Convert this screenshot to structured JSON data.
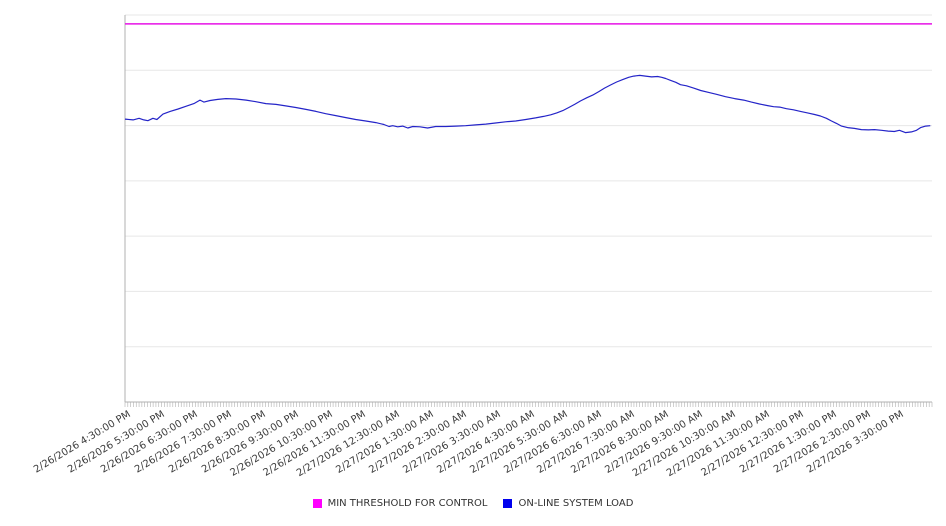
{
  "chart_data": {
    "type": "line",
    "title": "",
    "xlabel": "",
    "ylabel": "",
    "x_axis": {
      "x_unit": "hours_since_first_label",
      "hours_span": 24,
      "minor_ticks": 288,
      "categories": [
        "2/26/2026 4:30:00 PM",
        "2/26/2026 5:30:00 PM",
        "2/26/2026 6:30:00 PM",
        "2/26/2026 7:30:00 PM",
        "2/26/2026 8:30:00 PM",
        "2/26/2026 9:30:00 PM",
        "2/26/2026 10:30:00 PM",
        "2/26/2026 11:30:00 PM",
        "2/27/2026 12:30:00 AM",
        "2/27/2026 1:30:00 AM",
        "2/27/2026 2:30:00 AM",
        "2/27/2026 3:30:00 AM",
        "2/27/2026 4:30:00 AM",
        "2/27/2026 5:30:00 AM",
        "2/27/2026 6:30:00 AM",
        "2/27/2026 7:30:00 AM",
        "2/27/2026 8:30:00 AM",
        "2/27/2026 9:30:00 AM",
        "2/27/2026 10:30:00 AM",
        "2/27/2026 11:30:00 AM",
        "2/27/2026 12:30:00 PM",
        "2/27/2026 1:30:00 PM",
        "2/27/2026 2:30:00 PM",
        "2/27/2026 3:30:00 PM"
      ]
    },
    "y_axis": {
      "labels_visible": false,
      "ylim": [
        0,
        100
      ],
      "unit": "relative-load (no tick labels shown on screen)"
    },
    "grid": {
      "horizontal_divisions": 7,
      "vertical": false,
      "color": "#e7e7e7"
    },
    "axis_color": "#b0b0b0",
    "legend_position": "bottom-center",
    "legend": [
      {
        "label": "MIN THRESHOLD FOR CONTROL",
        "color": "#ff00ff"
      },
      {
        "label": "ON-LINE SYSTEM LOAD",
        "color": "#0000ee"
      }
    ],
    "series": [
      {
        "name": "MIN THRESHOLD FOR CONTROL",
        "kind": "threshold",
        "color": "#e613e6",
        "value": 97.7
      },
      {
        "name": "ON-LINE SYSTEM LOAD",
        "kind": "line",
        "color": "#2424c8",
        "points": [
          [
            0,
            73.1
          ],
          [
            0.24,
            72.9
          ],
          [
            0.42,
            73.3
          ],
          [
            0.56,
            72.9
          ],
          [
            0.68,
            72.7
          ],
          [
            0.83,
            73.3
          ],
          [
            0.95,
            73.0
          ],
          [
            1.13,
            74.4
          ],
          [
            1.34,
            75.1
          ],
          [
            1.58,
            75.7
          ],
          [
            1.81,
            76.4
          ],
          [
            2.05,
            77.1
          ],
          [
            2.23,
            78.0
          ],
          [
            2.35,
            77.5
          ],
          [
            2.53,
            77.9
          ],
          [
            2.76,
            78.2
          ],
          [
            3.0,
            78.4
          ],
          [
            3.3,
            78.3
          ],
          [
            3.6,
            78.0
          ],
          [
            3.89,
            77.6
          ],
          [
            4.19,
            77.1
          ],
          [
            4.49,
            76.9
          ],
          [
            4.78,
            76.5
          ],
          [
            5.08,
            76.1
          ],
          [
            5.38,
            75.6
          ],
          [
            5.68,
            75.1
          ],
          [
            5.97,
            74.5
          ],
          [
            6.27,
            74.0
          ],
          [
            6.57,
            73.5
          ],
          [
            6.86,
            73.0
          ],
          [
            7.16,
            72.6
          ],
          [
            7.46,
            72.2
          ],
          [
            7.7,
            71.7
          ],
          [
            7.85,
            71.2
          ],
          [
            7.96,
            71.4
          ],
          [
            8.11,
            71.1
          ],
          [
            8.26,
            71.3
          ],
          [
            8.41,
            70.8
          ],
          [
            8.56,
            71.2
          ],
          [
            8.77,
            71.1
          ],
          [
            9.0,
            70.8
          ],
          [
            9.24,
            71.2
          ],
          [
            9.54,
            71.2
          ],
          [
            9.84,
            71.3
          ],
          [
            10.13,
            71.4
          ],
          [
            10.43,
            71.6
          ],
          [
            10.73,
            71.8
          ],
          [
            11.02,
            72.1
          ],
          [
            11.32,
            72.4
          ],
          [
            11.62,
            72.6
          ],
          [
            11.92,
            73.0
          ],
          [
            12.21,
            73.4
          ],
          [
            12.45,
            73.8
          ],
          [
            12.66,
            74.2
          ],
          [
            12.84,
            74.7
          ],
          [
            13.02,
            75.3
          ],
          [
            13.2,
            76.1
          ],
          [
            13.37,
            76.9
          ],
          [
            13.55,
            77.8
          ],
          [
            13.73,
            78.6
          ],
          [
            13.91,
            79.3
          ],
          [
            14.09,
            80.2
          ],
          [
            14.26,
            81.1
          ],
          [
            14.44,
            81.9
          ],
          [
            14.62,
            82.7
          ],
          [
            14.8,
            83.3
          ],
          [
            14.98,
            83.9
          ],
          [
            15.13,
            84.2
          ],
          [
            15.31,
            84.4
          ],
          [
            15.48,
            84.2
          ],
          [
            15.66,
            84.0
          ],
          [
            15.84,
            84.1
          ],
          [
            15.96,
            83.9
          ],
          [
            16.08,
            83.6
          ],
          [
            16.23,
            83.1
          ],
          [
            16.38,
            82.6
          ],
          [
            16.52,
            82.0
          ],
          [
            16.7,
            81.7
          ],
          [
            16.91,
            81.1
          ],
          [
            17.12,
            80.5
          ],
          [
            17.36,
            80.0
          ],
          [
            17.59,
            79.5
          ],
          [
            17.86,
            78.9
          ],
          [
            18.13,
            78.4
          ],
          [
            18.4,
            78.0
          ],
          [
            18.63,
            77.5
          ],
          [
            18.87,
            77.0
          ],
          [
            19.11,
            76.6
          ],
          [
            19.29,
            76.3
          ],
          [
            19.47,
            76.2
          ],
          [
            19.67,
            75.8
          ],
          [
            19.88,
            75.5
          ],
          [
            20.09,
            75.1
          ],
          [
            20.3,
            74.7
          ],
          [
            20.51,
            74.3
          ],
          [
            20.68,
            73.9
          ],
          [
            20.86,
            73.3
          ],
          [
            21.01,
            72.6
          ],
          [
            21.16,
            72.0
          ],
          [
            21.31,
            71.3
          ],
          [
            21.49,
            70.9
          ],
          [
            21.69,
            70.7
          ],
          [
            21.9,
            70.4
          ],
          [
            22.11,
            70.3
          ],
          [
            22.29,
            70.4
          ],
          [
            22.5,
            70.2
          ],
          [
            22.7,
            70.0
          ],
          [
            22.88,
            69.9
          ],
          [
            23.03,
            70.2
          ],
          [
            23.21,
            69.6
          ],
          [
            23.39,
            69.8
          ],
          [
            23.54,
            70.2
          ],
          [
            23.66,
            70.9
          ],
          [
            23.81,
            71.3
          ],
          [
            23.95,
            71.4
          ]
        ]
      }
    ]
  }
}
